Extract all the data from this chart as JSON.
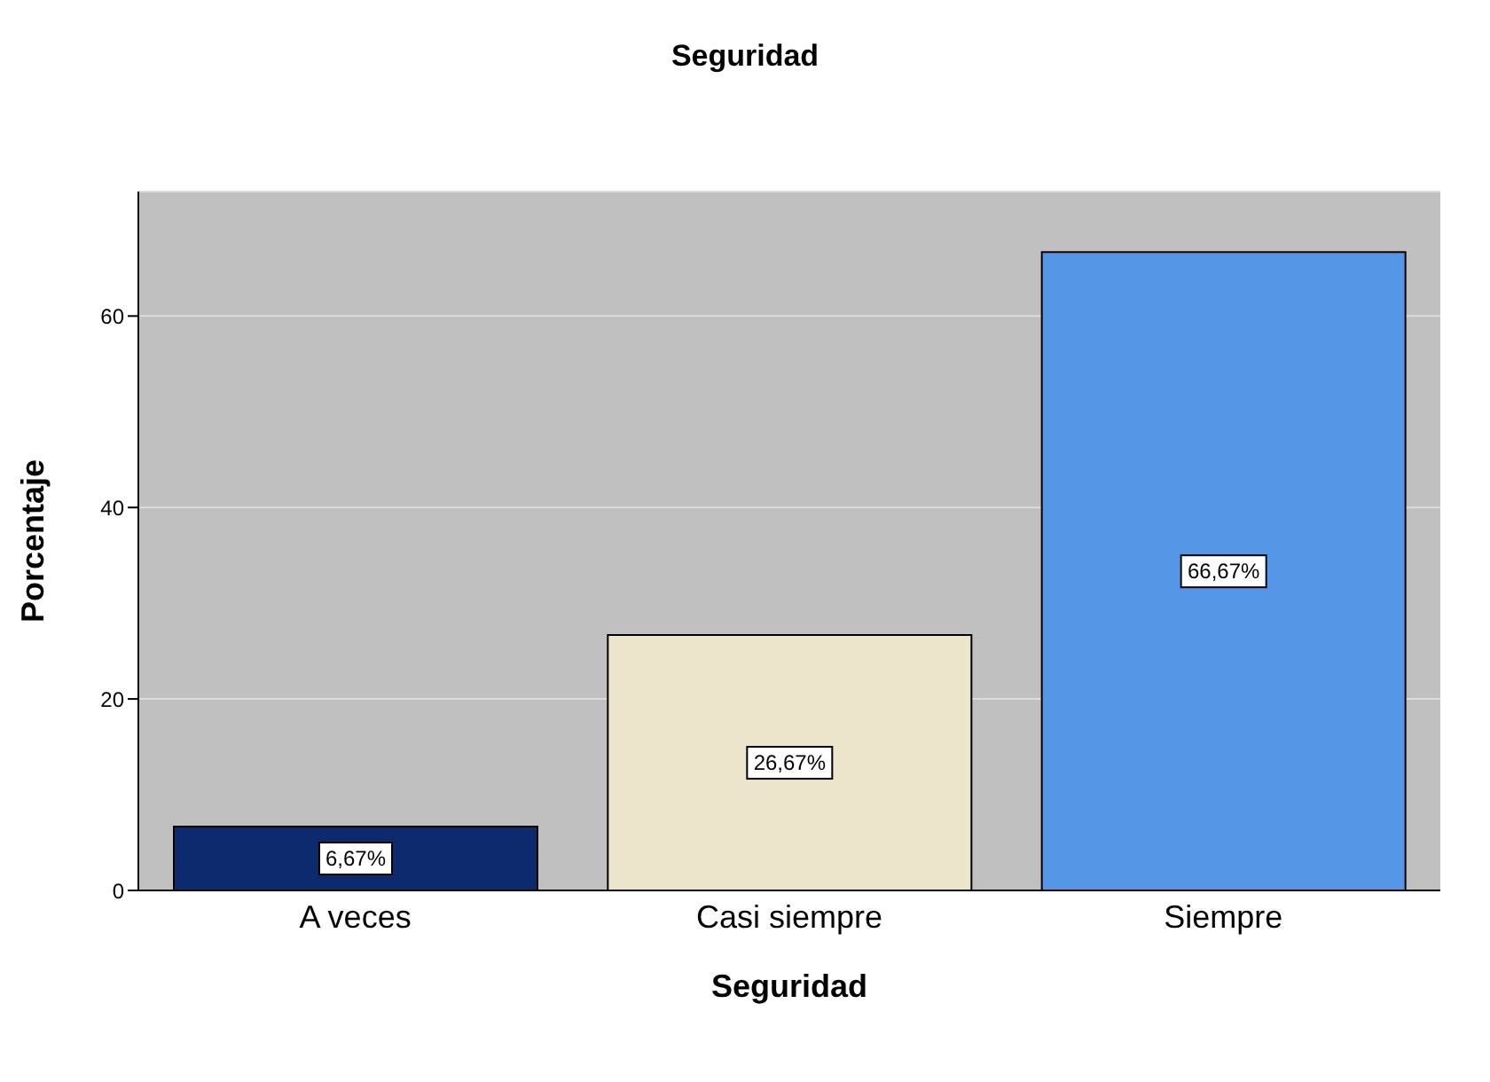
{
  "chart_data": {
    "type": "bar",
    "title": "Seguridad",
    "xlabel": "Seguridad",
    "ylabel": "Porcentaje",
    "categories": [
      "A veces",
      "Casi siempre",
      "Siempre"
    ],
    "values": [
      6.67,
      26.67,
      66.67
    ],
    "colors": [
      "#0d2a6e",
      "#ede4cc",
      "#5596e6"
    ],
    "value_labels": [
      "6,67%",
      "26,67%",
      "66,67%"
    ],
    "ylim": [
      0,
      73
    ],
    "yticks": [
      0,
      20,
      40,
      60
    ],
    "grid": "y"
  }
}
